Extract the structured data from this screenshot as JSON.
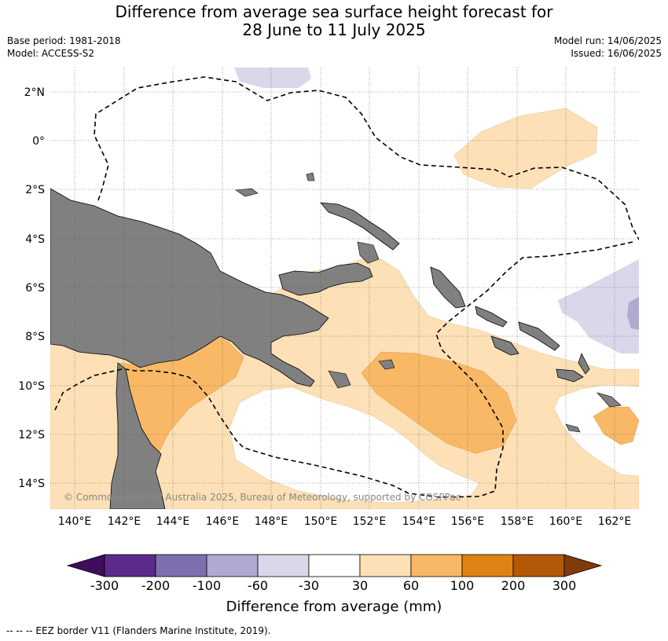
{
  "title": {
    "line1": "Difference from average sea surface height forecast for",
    "line2": "28 June to 11 July 2025"
  },
  "meta": {
    "base_period": "Base period: 1981-2018",
    "model": "Model: ACCESS-S2",
    "model_run": "Model run: 14/06/2025",
    "issued": "Issued: 16/06/2025"
  },
  "map": {
    "lat_labels": [
      "2°N",
      "0°",
      "2°S",
      "4°S",
      "6°S",
      "8°S",
      "10°S",
      "12°S",
      "14°S"
    ],
    "lon_labels": [
      "140°E",
      "142°E",
      "144°E",
      "146°E",
      "148°E",
      "150°E",
      "152°E",
      "154°E",
      "156°E",
      "158°E",
      "160°E",
      "162°E"
    ],
    "copyright": "© Commonwealth of Australia 2025, Bureau of Meteorology, supported by COSPPac",
    "colors": {
      "land": "#808080",
      "plus_30_60": "#fde0b6",
      "plus_60_100": "#f9b865",
      "minus_30_60": "#d8d8ea",
      "minus_60_100": "#b0a9d2"
    }
  },
  "colorbar": {
    "ticks": [
      "-300",
      "-200",
      "-100",
      "-60",
      "-30",
      "30",
      "60",
      "100",
      "200",
      "300"
    ],
    "colors": [
      "#3f0d5c",
      "#5b2a8c",
      "#7f6fae",
      "#b0a9d2",
      "#d8d8ea",
      "#ffffff",
      "#fde0b6",
      "#f9b865",
      "#e08213",
      "#b35806",
      "#7f3b08"
    ],
    "label": "Difference from average (mm)"
  },
  "footnote": "--  --  -- EEZ border V11 (Flanders Marine Institute, 2019)."
}
